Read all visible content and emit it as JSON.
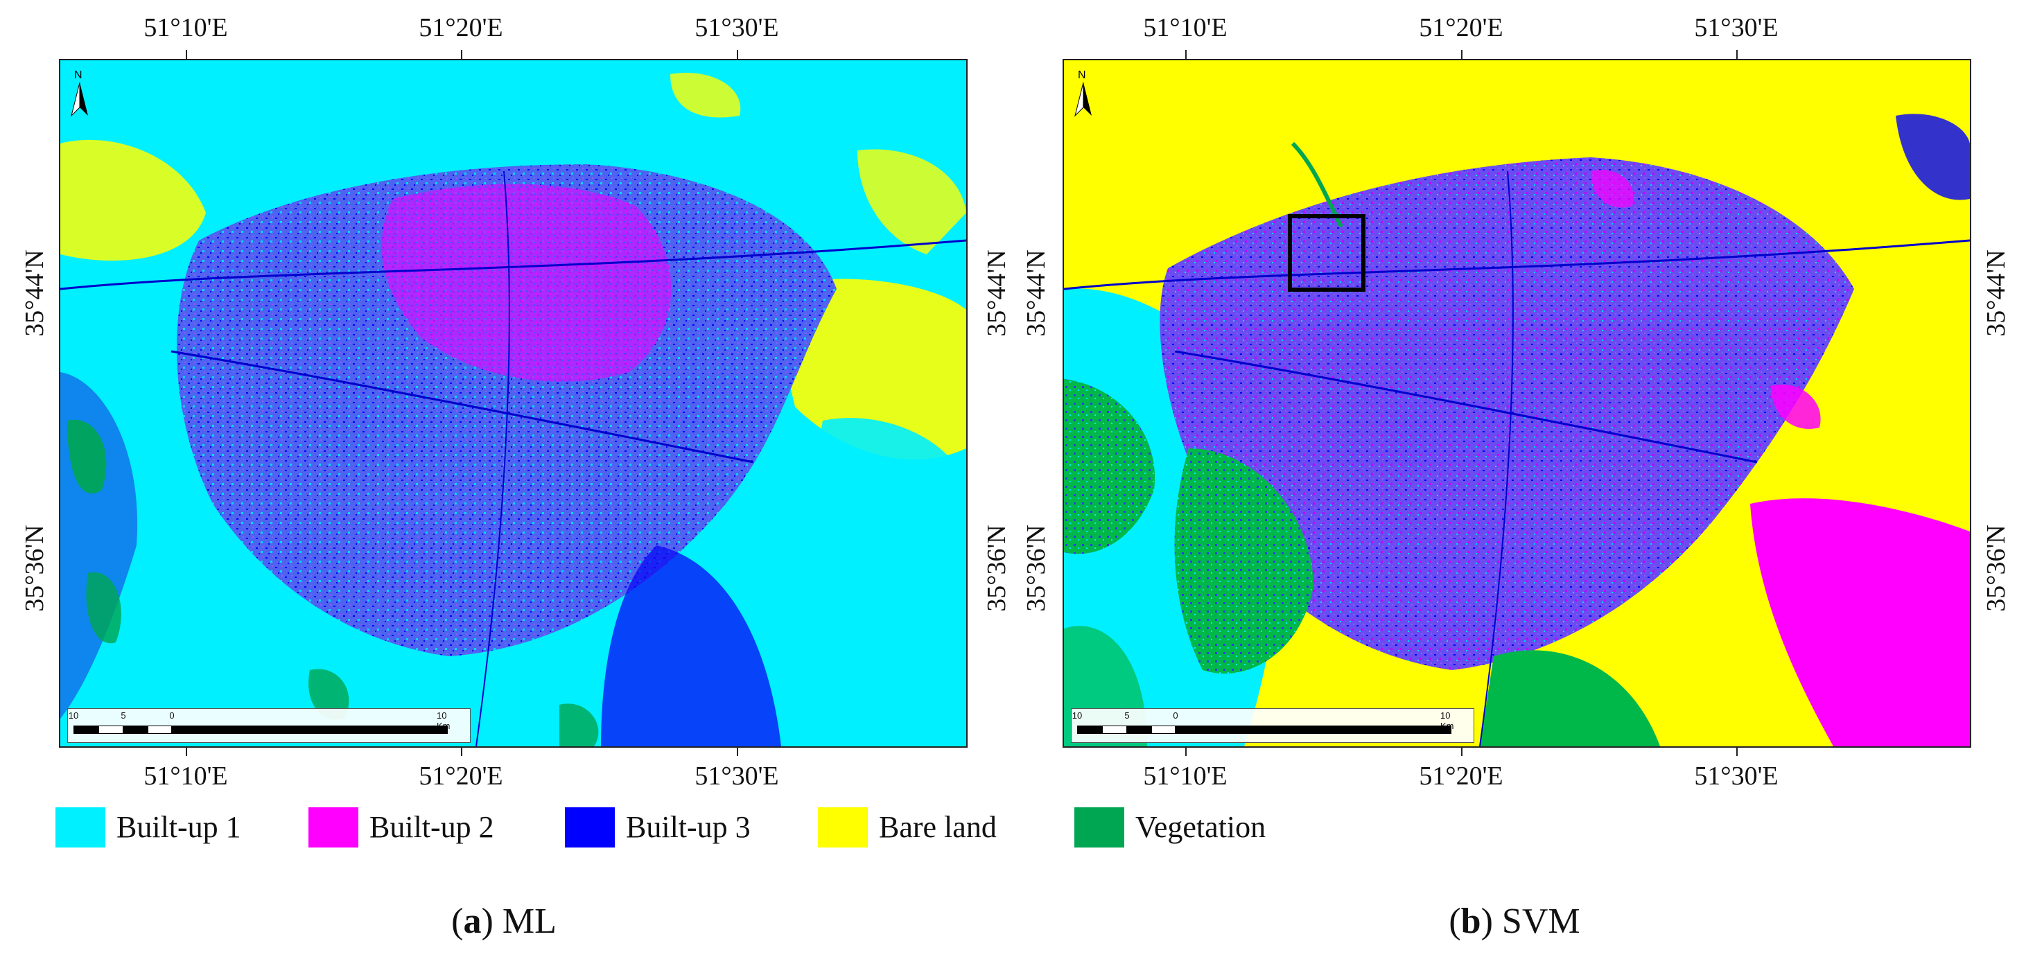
{
  "panels": [
    {
      "id": "a",
      "caption_letter": "a",
      "caption_text": "ML",
      "lon_ticks_top": [
        "51°10'E",
        "51°20'E",
        "51°30'E"
      ],
      "lon_ticks_bottom": [
        "51°10'E",
        "51°20'E",
        "51°30'E"
      ],
      "lat_ticks_left": [
        "35°44'N",
        "35°36'N"
      ],
      "lat_ticks_right": [
        "35°44'N",
        "35°36'N"
      ],
      "scalebar_labels": [
        "10",
        "5",
        "0",
        "10 Km"
      ],
      "north_label": "N"
    },
    {
      "id": "b",
      "caption_letter": "b",
      "caption_text": "SVM",
      "lon_ticks_top": [
        "51°10'E",
        "51°20'E",
        "51°30'E"
      ],
      "lon_ticks_bottom": [
        "51°10'E",
        "51°20'E",
        "51°30'E"
      ],
      "lat_ticks_left": [
        "35°44'N",
        "35°36'N"
      ],
      "lat_ticks_right": [
        "35°44'N",
        "35°36'N"
      ],
      "scalebar_labels": [
        "10",
        "5",
        "0",
        "10 Km"
      ],
      "north_label": "N",
      "has_inset_box": true
    }
  ],
  "legend": [
    {
      "label": "Built-up 1",
      "color": "#00f0ff"
    },
    {
      "label": "Built-up 2",
      "color": "#ff00ff"
    },
    {
      "label": "Built-up 3",
      "color": "#0000ff"
    },
    {
      "label": "Bare land",
      "color": "#ffff00"
    },
    {
      "label": "Vegetation",
      "color": "#00a651"
    }
  ],
  "colors": {
    "builtup1": "#00f0ff",
    "builtup2": "#ff00ff",
    "builtup3": "#0000ff",
    "builtup_mix": "#5a6cf5",
    "bare": "#ffff00",
    "vegetation": "#00a651"
  }
}
